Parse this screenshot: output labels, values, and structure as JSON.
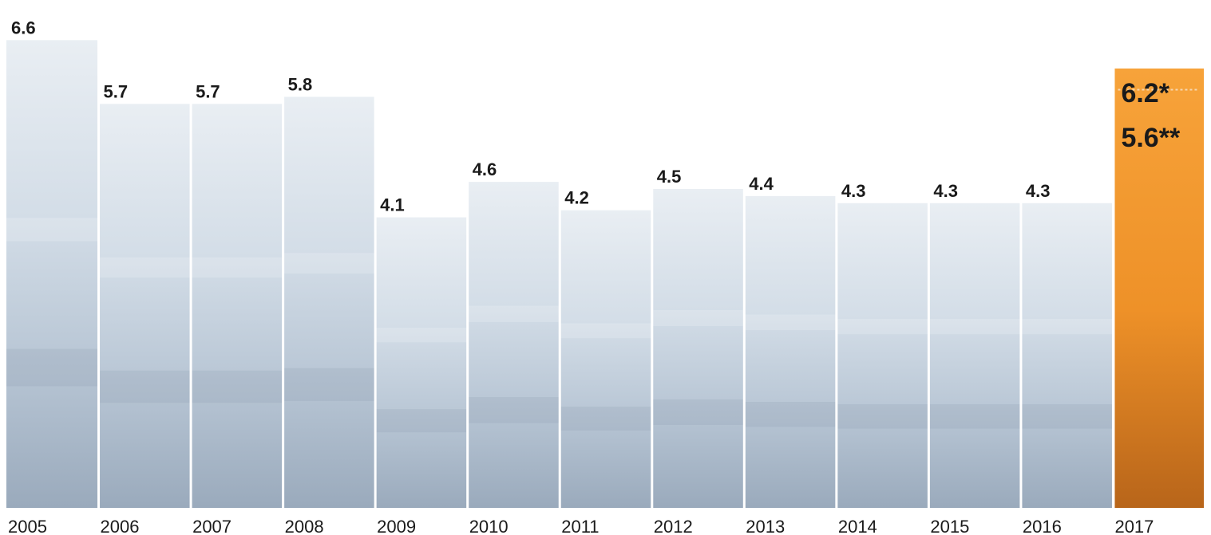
{
  "colors": {
    "background": "#ffffff",
    "photo_tint": "#b8c8d8",
    "bar_divider": "#ffffff",
    "highlight": "#f29a2e",
    "text": "#1a1a1a"
  },
  "chart_data": {
    "type": "bar",
    "title": "",
    "xlabel": "",
    "ylabel": "",
    "grid": false,
    "legend": "none",
    "ylim": [
      0,
      7.2
    ],
    "categories": [
      "2005",
      "2006",
      "2007",
      "2008",
      "2009",
      "2010",
      "2011",
      "2012",
      "2013",
      "2014",
      "2015",
      "2016",
      "2017"
    ],
    "values": [
      6.6,
      5.7,
      5.7,
      5.8,
      4.1,
      4.6,
      4.2,
      4.5,
      4.4,
      4.3,
      4.3,
      4.3,
      6.2
    ],
    "value_labels": [
      "6.6",
      "5.7",
      "5.7",
      "5.8",
      "4.1",
      "4.6",
      "4.2",
      "4.5",
      "4.4",
      "4.3",
      "4.3",
      "4.3",
      ""
    ],
    "highlight": {
      "category": "2017",
      "values": [
        6.2,
        5.6
      ],
      "labels": [
        "6.2*",
        "5.6**"
      ]
    }
  }
}
